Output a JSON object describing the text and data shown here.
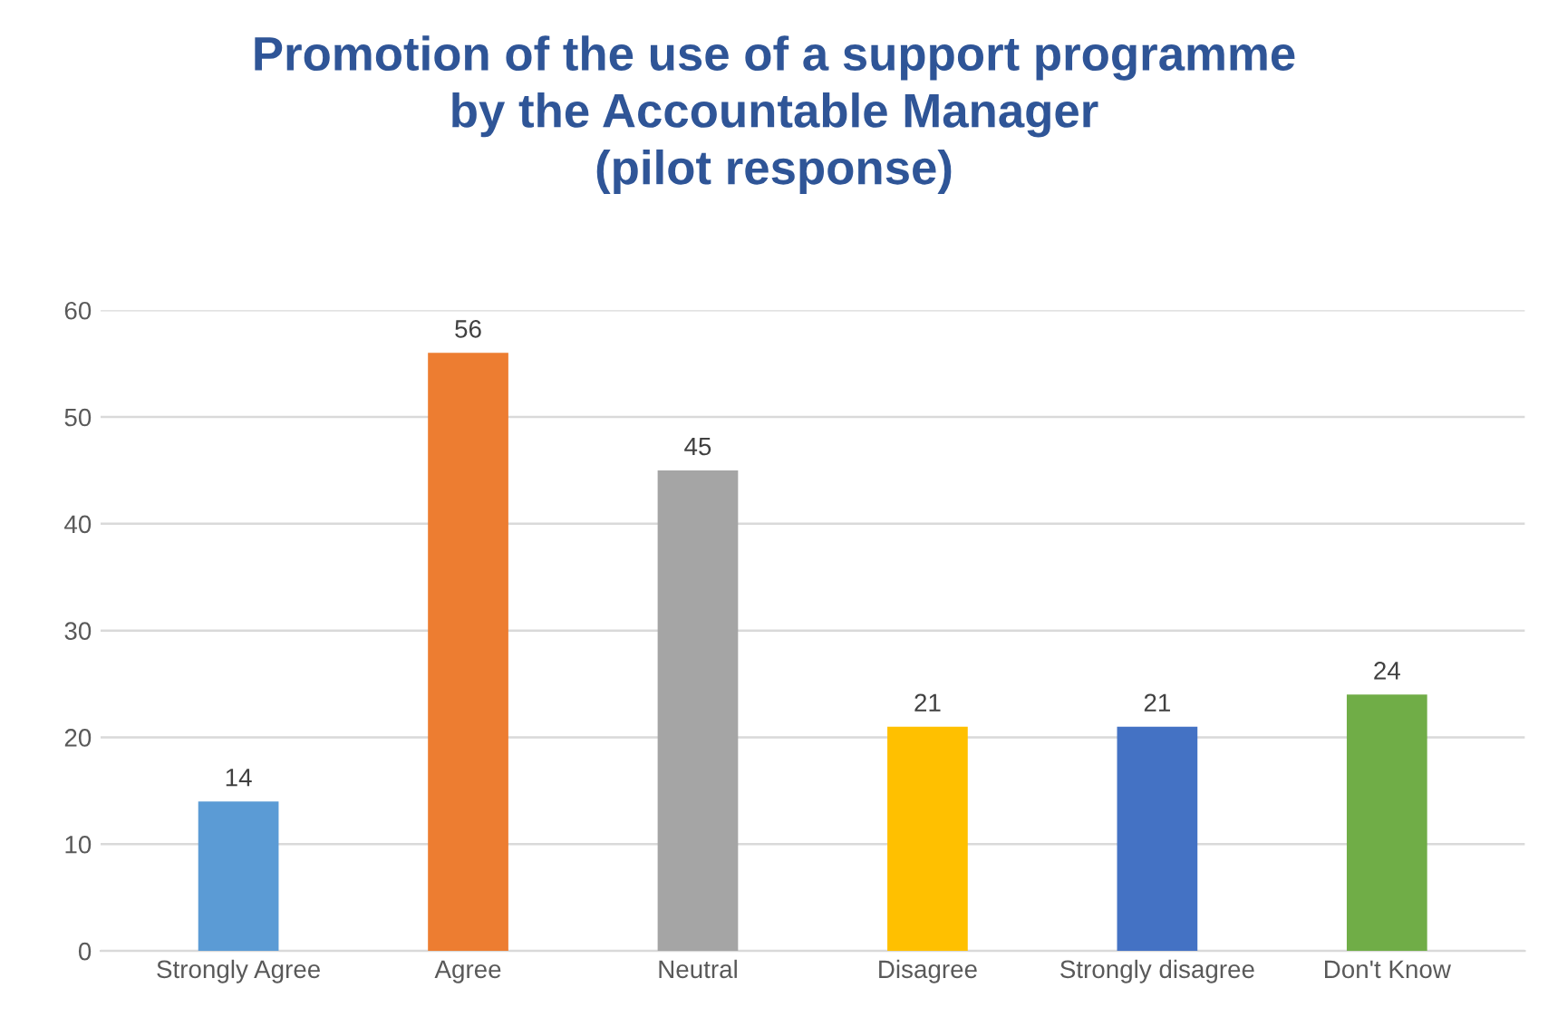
{
  "chart_data": {
    "type": "bar",
    "title": "Promotion of the use of a support programme\nby the Accountable Manager\n(pilot response)",
    "categories": [
      "Strongly Agree",
      "Agree",
      "Neutral",
      "Disagree",
      "Strongly disagree",
      "Don't Know"
    ],
    "values": [
      14,
      56,
      45,
      21,
      21,
      24
    ],
    "colors": [
      "#5b9bd5",
      "#ed7d31",
      "#a5a5a5",
      "#ffc000",
      "#4472c4",
      "#70ad47"
    ],
    "ylim": [
      0,
      60
    ],
    "yticks": [
      0,
      10,
      20,
      30,
      40,
      50,
      60
    ],
    "grid": "y",
    "data_labels": true
  }
}
